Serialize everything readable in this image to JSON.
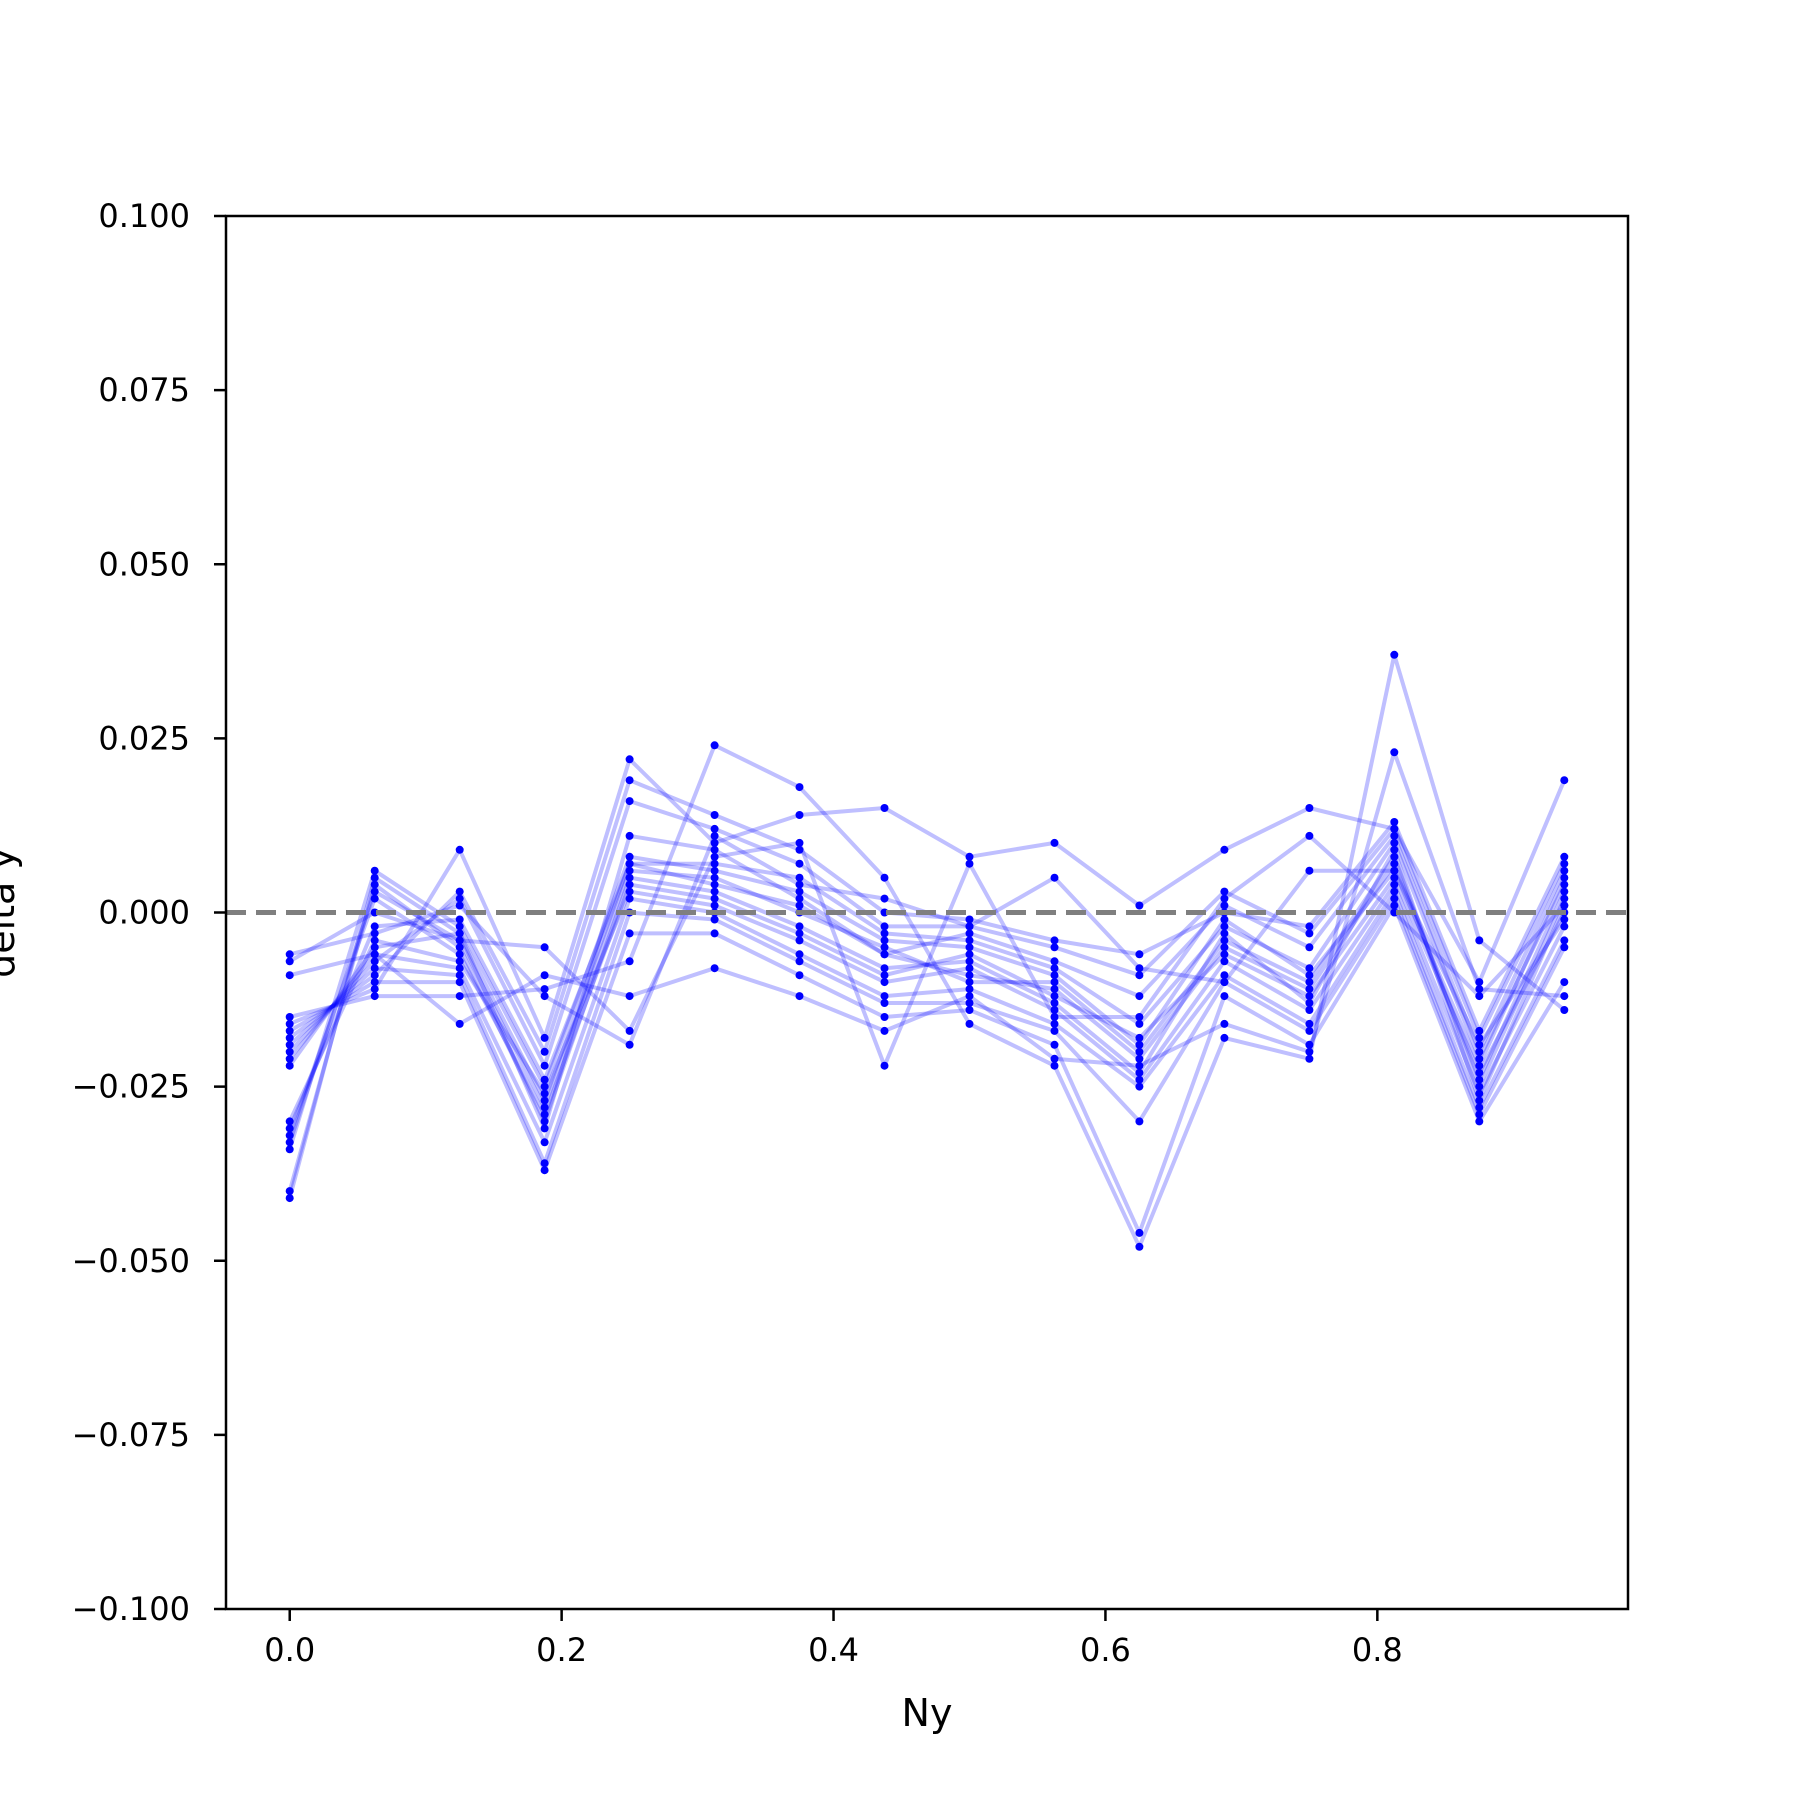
{
  "chart_data": {
    "type": "line",
    "title": "",
    "xlabel": "Ny",
    "ylabel": "delta y",
    "xlim": [
      -0.046875,
      0.984375
    ],
    "ylim": [
      -0.1,
      0.1
    ],
    "x": [
      0.0,
      0.0625,
      0.125,
      0.1875,
      0.25,
      0.3125,
      0.375,
      0.4375,
      0.5,
      0.5625,
      0.625,
      0.6875,
      0.75,
      0.8125,
      0.875,
      0.9375
    ],
    "xticks": [
      0.0,
      0.2,
      0.4,
      0.6,
      0.8
    ],
    "xtick_labels": [
      "0.0",
      "0.2",
      "0.4",
      "0.6",
      "0.8"
    ],
    "yticks": [
      -0.1,
      -0.075,
      -0.05,
      -0.025,
      0.0,
      0.025,
      0.05,
      0.075,
      0.1
    ],
    "ytick_labels": [
      "−0.100",
      "−0.075",
      "−0.050",
      "−0.025",
      "0.000",
      "0.025",
      "0.050",
      "0.075",
      "0.100"
    ],
    "reference_line": {
      "y": 0.0,
      "style": "dashed",
      "color": "#7f7f7f"
    },
    "colors": {
      "series": "#0000ff",
      "axis": "#000000"
    },
    "grid": false,
    "legend": "none",
    "series": [
      {
        "values": [
          -0.041,
          0.005,
          -0.003,
          -0.027,
          0.007,
          0.004,
          0.001,
          -0.006,
          -0.009,
          -0.011,
          -0.021,
          -0.005,
          -0.011,
          0.007,
          -0.024,
          0.003
        ]
      },
      {
        "values": [
          -0.04,
          0.004,
          -0.005,
          -0.03,
          0.005,
          0.003,
          -0.002,
          -0.008,
          -0.007,
          -0.013,
          -0.023,
          -0.003,
          -0.013,
          0.009,
          -0.027,
          0.001
        ]
      },
      {
        "values": [
          -0.034,
          0.006,
          -0.002,
          -0.025,
          0.008,
          0.006,
          0.003,
          -0.004,
          -0.005,
          -0.009,
          -0.019,
          -0.001,
          -0.009,
          0.006,
          -0.022,
          0.005
        ]
      },
      {
        "values": [
          -0.033,
          0.003,
          -0.004,
          -0.028,
          0.006,
          0.005,
          0.0,
          -0.005,
          -0.01,
          -0.01,
          -0.02,
          -0.004,
          -0.01,
          0.008,
          -0.025,
          0.002
        ]
      },
      {
        "values": [
          -0.032,
          0.002,
          -0.006,
          -0.029,
          0.004,
          0.002,
          -0.003,
          -0.009,
          -0.006,
          -0.012,
          -0.018,
          -0.006,
          -0.012,
          0.005,
          -0.023,
          0.0
        ]
      },
      {
        "values": [
          -0.031,
          -0.002,
          -0.001,
          -0.024,
          0.007,
          0.007,
          0.005,
          -0.003,
          -0.004,
          -0.008,
          -0.016,
          -0.002,
          -0.008,
          0.01,
          -0.021,
          0.004
        ]
      },
      {
        "values": [
          -0.03,
          -0.004,
          -0.007,
          -0.026,
          0.003,
          0.001,
          -0.004,
          -0.01,
          -0.008,
          -0.014,
          -0.024,
          -0.007,
          -0.014,
          0.004,
          -0.026,
          -0.002
        ]
      },
      {
        "values": [
          -0.022,
          -0.005,
          -0.003,
          -0.031,
          0.011,
          0.009,
          0.002,
          -0.006,
          -0.003,
          -0.007,
          -0.012,
          0.001,
          -0.005,
          0.011,
          -0.02,
          0.006
        ]
      },
      {
        "values": [
          -0.021,
          -0.006,
          -0.008,
          -0.033,
          0.002,
          0.0,
          -0.006,
          -0.012,
          -0.011,
          -0.016,
          -0.025,
          -0.009,
          -0.016,
          0.003,
          -0.028,
          -0.004
        ]
      },
      {
        "values": [
          -0.02,
          -0.007,
          0.002,
          -0.022,
          0.016,
          0.012,
          0.007,
          -0.002,
          -0.002,
          -0.005,
          -0.009,
          0.003,
          -0.003,
          0.012,
          -0.018,
          0.007
        ]
      },
      {
        "values": [
          -0.019,
          -0.008,
          -0.009,
          -0.036,
          0.0,
          -0.001,
          -0.007,
          -0.013,
          -0.013,
          -0.017,
          -0.03,
          -0.01,
          -0.017,
          0.002,
          -0.029,
          -0.005
        ]
      },
      {
        "values": [
          -0.018,
          -0.009,
          0.003,
          -0.02,
          0.019,
          0.014,
          0.009,
          0.0,
          -0.001,
          -0.004,
          -0.006,
          0.0,
          -0.002,
          0.013,
          -0.017,
          0.008
        ]
      },
      {
        "values": [
          -0.017,
          -0.01,
          -0.01,
          -0.037,
          -0.003,
          -0.003,
          -0.009,
          -0.015,
          -0.014,
          -0.019,
          -0.046,
          -0.012,
          -0.019,
          0.001,
          -0.03,
          -0.01
        ]
      },
      {
        "values": [
          -0.016,
          -0.011,
          0.009,
          -0.018,
          0.022,
          0.01,
          0.014,
          0.015,
          0.008,
          0.01,
          0.001,
          0.009,
          0.015,
          0.012,
          -0.01,
          0.019
        ]
      },
      {
        "values": [
          -0.015,
          -0.012,
          -0.012,
          -0.011,
          -0.007,
          0.024,
          0.018,
          0.005,
          -0.016,
          -0.022,
          -0.048,
          -0.018,
          -0.021,
          0.037,
          -0.004,
          -0.014
        ]
      },
      {
        "values": [
          -0.009,
          -0.006,
          -0.016,
          -0.009,
          -0.012,
          -0.008,
          -0.012,
          -0.017,
          -0.012,
          -0.021,
          -0.022,
          -0.016,
          -0.02,
          0.023,
          -0.011,
          -0.012
        ]
      },
      {
        "values": [
          -0.007,
          0.0,
          -0.004,
          -0.005,
          -0.017,
          0.008,
          0.01,
          -0.022,
          0.007,
          -0.015,
          -0.015,
          0.002,
          0.011,
          0.0,
          -0.012,
          0.001
        ]
      },
      {
        "values": [
          -0.006,
          -0.003,
          0.001,
          -0.012,
          -0.019,
          0.011,
          0.004,
          0.002,
          -0.002,
          0.005,
          -0.008,
          -0.01,
          0.006,
          0.006,
          -0.019,
          -0.001
        ]
      }
    ]
  }
}
